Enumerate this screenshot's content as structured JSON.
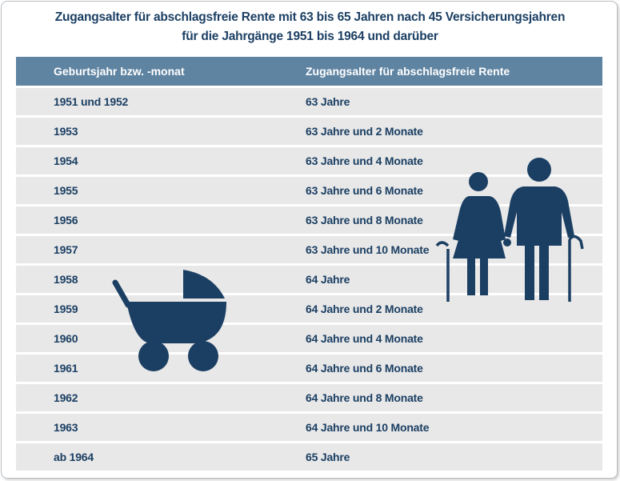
{
  "title": {
    "line1": "Zugangsalter für abschlagsfreie Rente mit 63 bis 65 Jahren nach 45 Versicherungsjahren",
    "line2": "für die Jahrgänge 1951 bis 1964 und darüber"
  },
  "table": {
    "headers": [
      "Geburtsjahr bzw. -monat",
      "Zugangsalter für abschlagsfreie Rente"
    ],
    "rows": [
      [
        "1951 und 1952",
        "63 Jahre"
      ],
      [
        "1953",
        "63 Jahre und 2 Monate"
      ],
      [
        "1954",
        "63 Jahre und 4 Monate"
      ],
      [
        "1955",
        "63 Jahre und 6 Monate"
      ],
      [
        "1956",
        "63 Jahre und 8 Monate"
      ],
      [
        "1957",
        "63 Jahre und 10 Monate"
      ],
      [
        "1958",
        "64 Jahre"
      ],
      [
        "1959",
        "64 Jahre und 2 Monate"
      ],
      [
        "1960",
        "64 Jahre und 4 Monate"
      ],
      [
        "1961",
        "64 Jahre und 6 Monate"
      ],
      [
        "1962",
        "64 Jahre und 8 Monate"
      ],
      [
        "1963",
        "64 Jahre und 10 Monate"
      ],
      [
        "ab 1964",
        "65 Jahre"
      ]
    ]
  },
  "icons": {
    "pram": "baby-carriage-icon",
    "seniors": "elderly-couple-icon"
  },
  "colors": {
    "title": "#1b3f63",
    "header_bg": "#5f84a2",
    "header_text": "#ffffff",
    "row_bg": "#e8e8e8",
    "row_text": "#1b3f63",
    "icon": "#1b3f63"
  }
}
